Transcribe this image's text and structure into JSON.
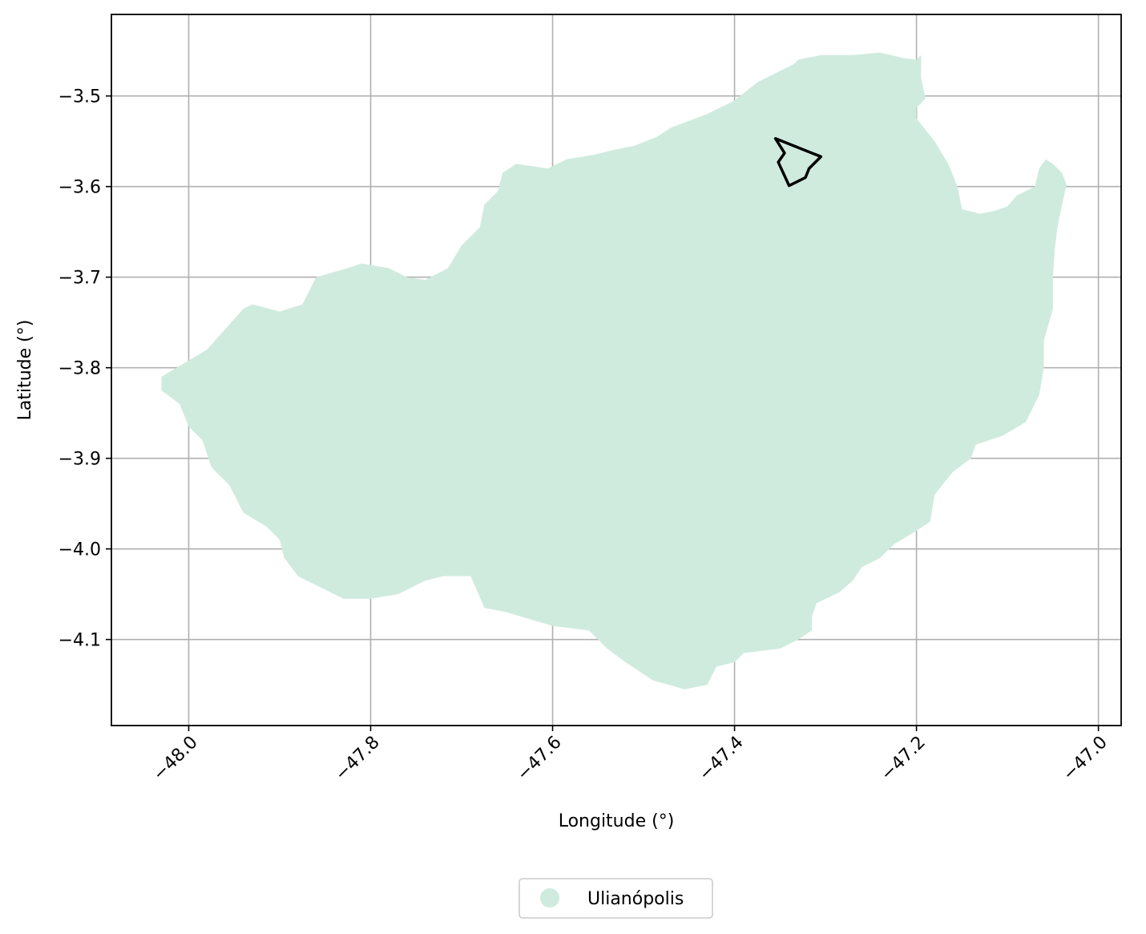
{
  "chart_data": {
    "type": "map",
    "title": "",
    "xlabel": "Longitude (°)",
    "ylabel": "Latitude (°)",
    "xlim": [
      -48.085,
      -46.975
    ],
    "ylim": [
      -4.195,
      -3.41
    ],
    "grid": true,
    "x_ticks": [
      {
        "value": -48.0,
        "label": "−48.0"
      },
      {
        "value": -47.8,
        "label": "−47.8"
      },
      {
        "value": -47.6,
        "label": "−47.6"
      },
      {
        "value": -47.4,
        "label": "−47.4"
      },
      {
        "value": -47.2,
        "label": "−47.2"
      },
      {
        "value": -47.0,
        "label": "−47.0"
      }
    ],
    "y_ticks": [
      {
        "value": -3.5,
        "label": "−3.5"
      },
      {
        "value": -3.6,
        "label": "−3.6"
      },
      {
        "value": -3.7,
        "label": "−3.7"
      },
      {
        "value": -3.8,
        "label": "−3.8"
      },
      {
        "value": -3.9,
        "label": "−3.9"
      },
      {
        "value": -4.0,
        "label": "−4.0"
      },
      {
        "value": -4.1,
        "label": "−4.1"
      }
    ],
    "region": {
      "name": "Ulianópolis",
      "color": "#cfebde",
      "boundary": [
        [
          -48.03,
          -3.81
        ],
        [
          -47.98,
          -3.78
        ],
        [
          -47.94,
          -3.735
        ],
        [
          -47.93,
          -3.73
        ],
        [
          -47.9,
          -3.738
        ],
        [
          -47.875,
          -3.73
        ],
        [
          -47.86,
          -3.7
        ],
        [
          -47.825,
          -3.69
        ],
        [
          -47.81,
          -3.685
        ],
        [
          -47.78,
          -3.69
        ],
        [
          -47.76,
          -3.7
        ],
        [
          -47.74,
          -3.703
        ],
        [
          -47.715,
          -3.69
        ],
        [
          -47.7,
          -3.665
        ],
        [
          -47.68,
          -3.645
        ],
        [
          -47.675,
          -3.62
        ],
        [
          -47.66,
          -3.605
        ],
        [
          -47.655,
          -3.585
        ],
        [
          -47.64,
          -3.575
        ],
        [
          -47.605,
          -3.58
        ],
        [
          -47.585,
          -3.57
        ],
        [
          -47.555,
          -3.565
        ],
        [
          -47.535,
          -3.56
        ],
        [
          -47.51,
          -3.555
        ],
        [
          -47.485,
          -3.545
        ],
        [
          -47.47,
          -3.535
        ],
        [
          -47.43,
          -3.52
        ],
        [
          -47.4,
          -3.505
        ],
        [
          -47.375,
          -3.485
        ],
        [
          -47.355,
          -3.475
        ],
        [
          -47.335,
          -3.465
        ],
        [
          -47.33,
          -3.46
        ],
        [
          -47.305,
          -3.455
        ],
        [
          -47.27,
          -3.455
        ],
        [
          -47.24,
          -3.452
        ],
        [
          -47.215,
          -3.458
        ],
        [
          -47.2,
          -3.46
        ],
        [
          -47.195,
          -3.455
        ],
        [
          -47.195,
          -3.48
        ],
        [
          -47.19,
          -3.503
        ],
        [
          -47.2,
          -3.513
        ],
        [
          -47.2,
          -3.525
        ],
        [
          -47.18,
          -3.55
        ],
        [
          -47.165,
          -3.575
        ],
        [
          -47.155,
          -3.6
        ],
        [
          -47.15,
          -3.625
        ],
        [
          -47.13,
          -3.63
        ],
        [
          -47.115,
          -3.627
        ],
        [
          -47.1,
          -3.622
        ],
        [
          -47.09,
          -3.61
        ],
        [
          -47.07,
          -3.6
        ],
        [
          -47.065,
          -3.58
        ],
        [
          -47.058,
          -3.57
        ],
        [
          -47.05,
          -3.575
        ],
        [
          -47.04,
          -3.585
        ],
        [
          -47.035,
          -3.598
        ],
        [
          -47.04,
          -3.62
        ],
        [
          -47.045,
          -3.645
        ],
        [
          -47.048,
          -3.67
        ],
        [
          -47.05,
          -3.7
        ],
        [
          -47.05,
          -3.735
        ],
        [
          -47.06,
          -3.77
        ],
        [
          -47.06,
          -3.8
        ],
        [
          -47.065,
          -3.83
        ],
        [
          -47.08,
          -3.86
        ],
        [
          -47.105,
          -3.875
        ],
        [
          -47.135,
          -3.885
        ],
        [
          -47.14,
          -3.9
        ],
        [
          -47.16,
          -3.915
        ],
        [
          -47.18,
          -3.94
        ],
        [
          -47.185,
          -3.97
        ],
        [
          -47.205,
          -3.983
        ],
        [
          -47.225,
          -3.995
        ],
        [
          -47.24,
          -4.01
        ],
        [
          -47.26,
          -4.02
        ],
        [
          -47.27,
          -4.035
        ],
        [
          -47.285,
          -4.048
        ],
        [
          -47.31,
          -4.06
        ],
        [
          -47.315,
          -4.075
        ],
        [
          -47.315,
          -4.09
        ],
        [
          -47.33,
          -4.1
        ],
        [
          -47.35,
          -4.11
        ],
        [
          -47.39,
          -4.115
        ],
        [
          -47.4,
          -4.125
        ],
        [
          -47.42,
          -4.13
        ],
        [
          -47.43,
          -4.15
        ],
        [
          -47.455,
          -4.155
        ],
        [
          -47.49,
          -4.145
        ],
        [
          -47.52,
          -4.125
        ],
        [
          -47.54,
          -4.11
        ],
        [
          -47.56,
          -4.09
        ],
        [
          -47.6,
          -4.085
        ],
        [
          -47.65,
          -4.07
        ],
        [
          -47.675,
          -4.065
        ],
        [
          -47.69,
          -4.03
        ],
        [
          -47.72,
          -4.03
        ],
        [
          -47.74,
          -4.035
        ],
        [
          -47.77,
          -4.05
        ],
        [
          -47.8,
          -4.055
        ],
        [
          -47.83,
          -4.055
        ],
        [
          -47.86,
          -4.04
        ],
        [
          -47.88,
          -4.03
        ],
        [
          -47.895,
          -4.01
        ],
        [
          -47.9,
          -3.99
        ],
        [
          -47.915,
          -3.975
        ],
        [
          -47.94,
          -3.96
        ],
        [
          -47.955,
          -3.93
        ],
        [
          -47.975,
          -3.91
        ],
        [
          -47.985,
          -3.88
        ],
        [
          -48.0,
          -3.865
        ],
        [
          -48.01,
          -3.84
        ],
        [
          -48.03,
          -3.825
        ]
      ]
    },
    "highlight_outline": {
      "boundary": [
        [
          -47.355,
          -3.547
        ],
        [
          -47.305,
          -3.567
        ],
        [
          -47.318,
          -3.58
        ],
        [
          -47.322,
          -3.59
        ],
        [
          -47.34,
          -3.599
        ],
        [
          -47.352,
          -3.573
        ],
        [
          -47.345,
          -3.563
        ]
      ],
      "color": "#000000"
    },
    "legend": {
      "placement": "bottom-center",
      "entries": [
        {
          "label": "Ulianópolis",
          "color": "#cfebde"
        }
      ]
    }
  }
}
